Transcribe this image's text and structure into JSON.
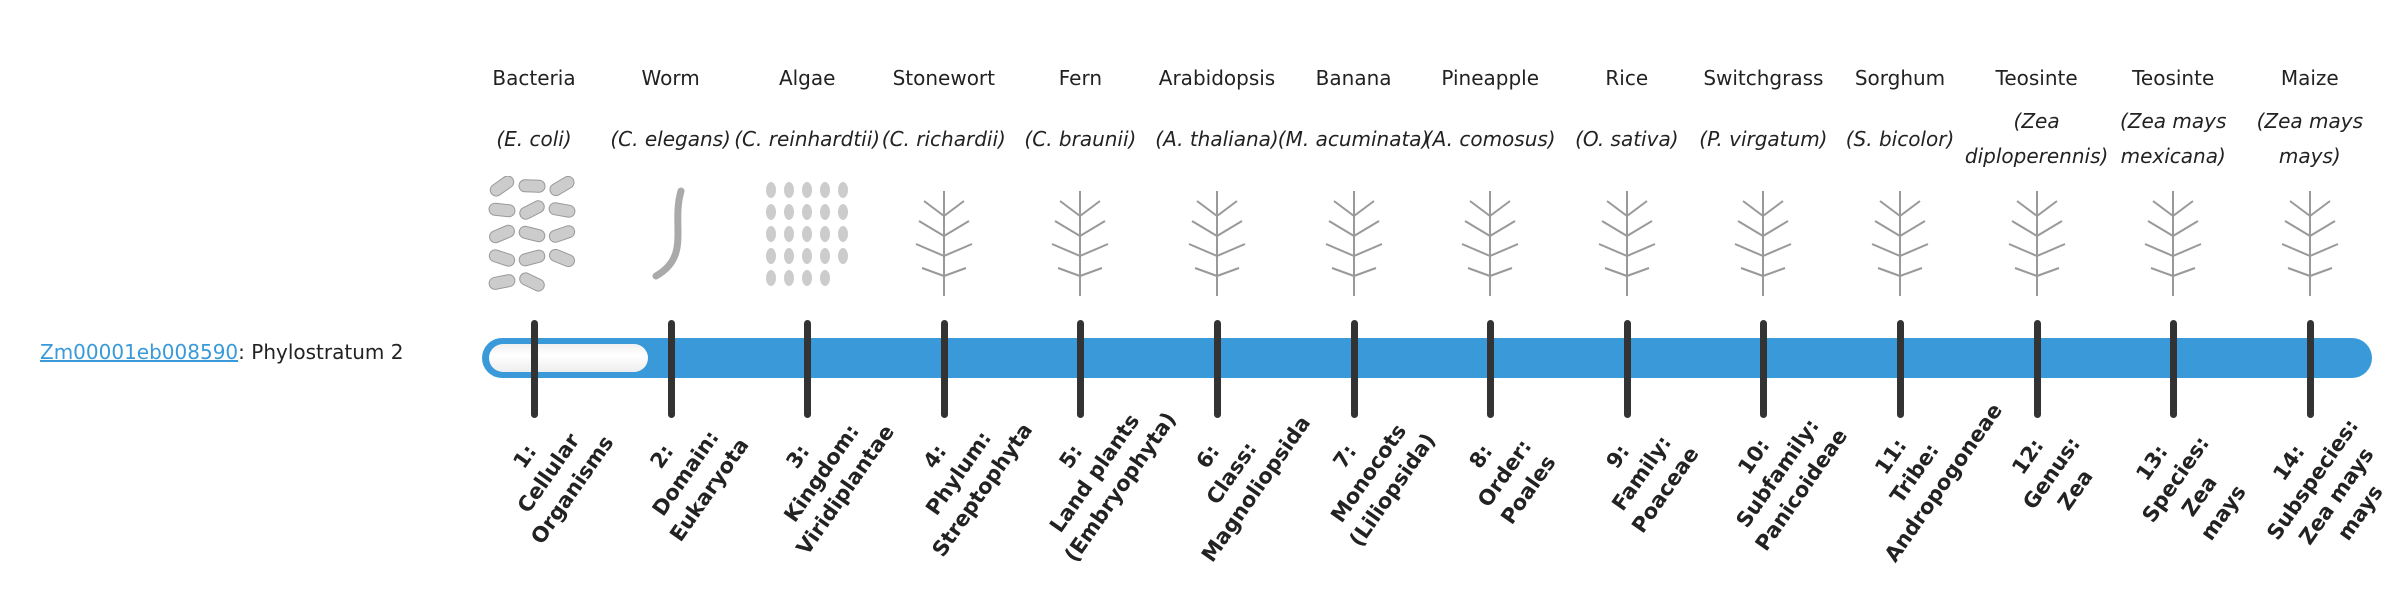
{
  "gene": {
    "id": "Zm00001eb008590",
    "suffix": ": Phylostratum 2",
    "phylostratum": 2
  },
  "colors": {
    "accent": "#3a9ad9",
    "tick": "#333333",
    "text": "#222222"
  },
  "organisms": [
    {
      "common": "Bacteria",
      "species": "(E. coli)",
      "icon": "bacteria-image"
    },
    {
      "common": "Worm",
      "species": "(C. elegans)",
      "icon": "worm-image"
    },
    {
      "common": "Algae",
      "species": "(C. reinhardtii)",
      "icon": "algae-image"
    },
    {
      "common": "Stonewort",
      "species": "(C. richardii)",
      "icon": "stonewort-image"
    },
    {
      "common": "Fern",
      "species": "(C. braunii)",
      "icon": "fern-image"
    },
    {
      "common": "Arabidopsis",
      "species": "(A. thaliana)",
      "icon": "arabidopsis-image"
    },
    {
      "common": "Banana",
      "species": "(M. acuminata)",
      "icon": "banana-image"
    },
    {
      "common": "Pineapple",
      "species": "(A. comosus)",
      "icon": "pineapple-image"
    },
    {
      "common": "Rice",
      "species": "(O. sativa)",
      "icon": "rice-image"
    },
    {
      "common": "Switchgrass",
      "species": "(P. virgatum)",
      "icon": "switchgrass-image"
    },
    {
      "common": "Sorghum",
      "species": "(S. bicolor)",
      "icon": "sorghum-image"
    },
    {
      "common": "Teosinte",
      "species": "(Zea diploperennis)",
      "icon": "teosinte-image"
    },
    {
      "common": "Teosinte",
      "species": "(Zea mays mexicana)",
      "icon": "teosinte-mexicana-image"
    },
    {
      "common": "Maize",
      "species": "(Zea mays mays)",
      "icon": "maize-image"
    }
  ],
  "strata": [
    [
      "1:",
      "Cellular",
      "Organisms"
    ],
    [
      "2:",
      "Domain:",
      "Eukaryota"
    ],
    [
      "3:",
      "Kingdom:",
      "Viridiplantae"
    ],
    [
      "4:",
      "Phylum:",
      "Streptophyta"
    ],
    [
      "5:",
      "Land plants",
      "(Embryophyta)"
    ],
    [
      "6:",
      "Class:",
      "Magnoliopsida"
    ],
    [
      "7:",
      "Monocots",
      "(Liliopsida)"
    ],
    [
      "8:",
      "Order:",
      "Poales"
    ],
    [
      "9:",
      "Family:",
      "Poaceae"
    ],
    [
      "10:",
      "Subfamily:",
      "Panicoideae"
    ],
    [
      "11:",
      "Tribe:",
      "Andropogoneae"
    ],
    [
      "12:",
      "Genus:",
      "Zea"
    ],
    [
      "13:",
      "Species:",
      "Zea",
      "mays"
    ],
    [
      "14:",
      "Subspecies:",
      "Zea mays",
      "mays"
    ]
  ]
}
